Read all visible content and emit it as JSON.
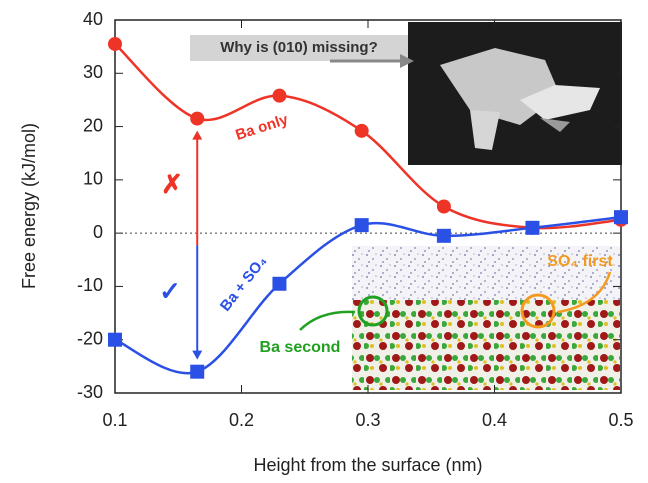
{
  "chart_data": {
    "type": "line",
    "x_label": "Height from the surface (nm)",
    "y_label": "Free energy (kJ/mol)",
    "x": [
      0.1,
      0.165,
      0.23,
      0.295,
      0.36,
      0.43,
      0.5
    ],
    "series": [
      {
        "name": "Ba only",
        "color": "#ee3327",
        "marker": "circle",
        "values": [
          35.5,
          21.5,
          25.8,
          19.2,
          5,
          1,
          2.5
        ]
      },
      {
        "name": "Ba + SO₄",
        "color": "#2a50e6",
        "marker": "square",
        "values": [
          -20,
          -26,
          -9.5,
          1.5,
          -0.5,
          1,
          3
        ]
      }
    ],
    "xlim": [
      0.1,
      0.5
    ],
    "xticks": [
      0.1,
      0.2,
      0.3,
      0.4,
      0.5
    ],
    "ylim": [
      -30,
      40
    ],
    "yticks": [
      -30,
      -20,
      -10,
      0,
      10,
      20,
      30,
      40
    ],
    "reference_line": 0,
    "annotations": {
      "question": "Why is (010) missing?",
      "cross": "✗",
      "check": "✓",
      "so4_first": "SO₄ first",
      "ba_second": "Ba second"
    }
  }
}
